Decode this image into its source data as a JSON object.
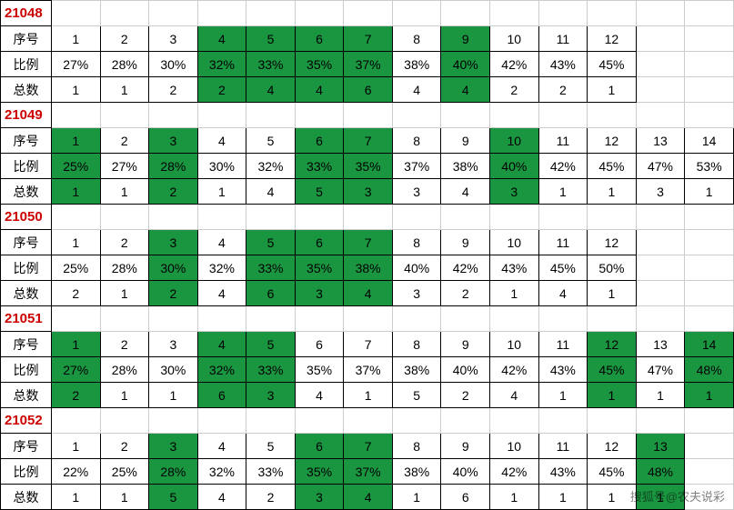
{
  "colors": {
    "highlight_bg": "#1a9641",
    "title_color": "#cc0000",
    "border_color": "#000000",
    "text_color": "#000000",
    "bg_color": "#ffffff"
  },
  "row_labels": {
    "seq": "序号",
    "ratio": "比例",
    "total": "总数"
  },
  "watermark": "搜狐号@农夫说彩",
  "blocks": [
    {
      "id": "21048",
      "cols": 12,
      "seq": [
        {
          "v": "1"
        },
        {
          "v": "2"
        },
        {
          "v": "3"
        },
        {
          "v": "4",
          "h": 1
        },
        {
          "v": "5",
          "h": 1
        },
        {
          "v": "6",
          "h": 1
        },
        {
          "v": "7",
          "h": 1
        },
        {
          "v": "8"
        },
        {
          "v": "9",
          "h": 1
        },
        {
          "v": "10"
        },
        {
          "v": "11"
        },
        {
          "v": "12"
        }
      ],
      "ratio": [
        {
          "v": "27%"
        },
        {
          "v": "28%"
        },
        {
          "v": "30%"
        },
        {
          "v": "32%",
          "h": 1
        },
        {
          "v": "33%",
          "h": 1
        },
        {
          "v": "35%",
          "h": 1
        },
        {
          "v": "37%",
          "h": 1
        },
        {
          "v": "38%"
        },
        {
          "v": "40%",
          "h": 1
        },
        {
          "v": "42%"
        },
        {
          "v": "43%"
        },
        {
          "v": "45%"
        }
      ],
      "total": [
        {
          "v": "1"
        },
        {
          "v": "1"
        },
        {
          "v": "2"
        },
        {
          "v": "2",
          "h": 1
        },
        {
          "v": "4",
          "h": 1
        },
        {
          "v": "4",
          "h": 1
        },
        {
          "v": "6",
          "h": 1
        },
        {
          "v": "4"
        },
        {
          "v": "4",
          "h": 1
        },
        {
          "v": "2"
        },
        {
          "v": "2"
        },
        {
          "v": "1"
        }
      ]
    },
    {
      "id": "21049",
      "cols": 14,
      "seq": [
        {
          "v": "1",
          "h": 1
        },
        {
          "v": "2"
        },
        {
          "v": "3",
          "h": 1
        },
        {
          "v": "4"
        },
        {
          "v": "5"
        },
        {
          "v": "6",
          "h": 1
        },
        {
          "v": "7",
          "h": 1
        },
        {
          "v": "8"
        },
        {
          "v": "9"
        },
        {
          "v": "10",
          "h": 1
        },
        {
          "v": "11"
        },
        {
          "v": "12"
        },
        {
          "v": "13"
        },
        {
          "v": "14"
        }
      ],
      "ratio": [
        {
          "v": "25%",
          "h": 1
        },
        {
          "v": "27%"
        },
        {
          "v": "28%",
          "h": 1
        },
        {
          "v": "30%"
        },
        {
          "v": "32%"
        },
        {
          "v": "33%",
          "h": 1
        },
        {
          "v": "35%",
          "h": 1
        },
        {
          "v": "37%"
        },
        {
          "v": "38%"
        },
        {
          "v": "40%",
          "h": 1
        },
        {
          "v": "42%"
        },
        {
          "v": "45%"
        },
        {
          "v": "47%"
        },
        {
          "v": "53%"
        }
      ],
      "total": [
        {
          "v": "1",
          "h": 1
        },
        {
          "v": "1"
        },
        {
          "v": "2",
          "h": 1
        },
        {
          "v": "1"
        },
        {
          "v": "4"
        },
        {
          "v": "5",
          "h": 1
        },
        {
          "v": "3",
          "h": 1
        },
        {
          "v": "3"
        },
        {
          "v": "4"
        },
        {
          "v": "3",
          "h": 1
        },
        {
          "v": "1"
        },
        {
          "v": "1"
        },
        {
          "v": "3"
        },
        {
          "v": "1"
        }
      ]
    },
    {
      "id": "21050",
      "cols": 12,
      "seq": [
        {
          "v": "1"
        },
        {
          "v": "2"
        },
        {
          "v": "3",
          "h": 1
        },
        {
          "v": "4"
        },
        {
          "v": "5",
          "h": 1
        },
        {
          "v": "6",
          "h": 1
        },
        {
          "v": "7",
          "h": 1
        },
        {
          "v": "8"
        },
        {
          "v": "9"
        },
        {
          "v": "10"
        },
        {
          "v": "11"
        },
        {
          "v": "12"
        }
      ],
      "ratio": [
        {
          "v": "25%"
        },
        {
          "v": "28%"
        },
        {
          "v": "30%",
          "h": 1
        },
        {
          "v": "32%"
        },
        {
          "v": "33%",
          "h": 1
        },
        {
          "v": "35%",
          "h": 1
        },
        {
          "v": "38%",
          "h": 1
        },
        {
          "v": "40%"
        },
        {
          "v": "42%"
        },
        {
          "v": "43%"
        },
        {
          "v": "45%"
        },
        {
          "v": "50%"
        }
      ],
      "total": [
        {
          "v": "2"
        },
        {
          "v": "1"
        },
        {
          "v": "2",
          "h": 1
        },
        {
          "v": "4"
        },
        {
          "v": "6",
          "h": 1
        },
        {
          "v": "3",
          "h": 1
        },
        {
          "v": "4",
          "h": 1
        },
        {
          "v": "3"
        },
        {
          "v": "2"
        },
        {
          "v": "1"
        },
        {
          "v": "4"
        },
        {
          "v": "1"
        }
      ]
    },
    {
      "id": "21051",
      "cols": 14,
      "seq": [
        {
          "v": "1",
          "h": 1
        },
        {
          "v": "2"
        },
        {
          "v": "3"
        },
        {
          "v": "4",
          "h": 1
        },
        {
          "v": "5",
          "h": 1
        },
        {
          "v": "6"
        },
        {
          "v": "7"
        },
        {
          "v": "8"
        },
        {
          "v": "9"
        },
        {
          "v": "10"
        },
        {
          "v": "11"
        },
        {
          "v": "12",
          "h": 1
        },
        {
          "v": "13"
        },
        {
          "v": "14",
          "h": 1
        }
      ],
      "ratio": [
        {
          "v": "27%",
          "h": 1
        },
        {
          "v": "28%"
        },
        {
          "v": "30%"
        },
        {
          "v": "32%",
          "h": 1
        },
        {
          "v": "33%",
          "h": 1
        },
        {
          "v": "35%"
        },
        {
          "v": "37%"
        },
        {
          "v": "38%"
        },
        {
          "v": "40%"
        },
        {
          "v": "42%"
        },
        {
          "v": "43%"
        },
        {
          "v": "45%",
          "h": 1
        },
        {
          "v": "47%"
        },
        {
          "v": "48%",
          "h": 1
        }
      ],
      "total": [
        {
          "v": "2",
          "h": 1
        },
        {
          "v": "1"
        },
        {
          "v": "1"
        },
        {
          "v": "6",
          "h": 1
        },
        {
          "v": "3",
          "h": 1
        },
        {
          "v": "4"
        },
        {
          "v": "1"
        },
        {
          "v": "5"
        },
        {
          "v": "2"
        },
        {
          "v": "4"
        },
        {
          "v": "1"
        },
        {
          "v": "1",
          "h": 1
        },
        {
          "v": "1"
        },
        {
          "v": "1",
          "h": 1
        }
      ]
    },
    {
      "id": "21052",
      "cols": 13,
      "seq": [
        {
          "v": "1"
        },
        {
          "v": "2"
        },
        {
          "v": "3",
          "h": 1
        },
        {
          "v": "4"
        },
        {
          "v": "5"
        },
        {
          "v": "6",
          "h": 1
        },
        {
          "v": "7",
          "h": 1
        },
        {
          "v": "8"
        },
        {
          "v": "9"
        },
        {
          "v": "10"
        },
        {
          "v": "11"
        },
        {
          "v": "12"
        },
        {
          "v": "13",
          "h": 1
        }
      ],
      "ratio": [
        {
          "v": "22%"
        },
        {
          "v": "25%"
        },
        {
          "v": "28%",
          "h": 1
        },
        {
          "v": "32%"
        },
        {
          "v": "33%"
        },
        {
          "v": "35%",
          "h": 1
        },
        {
          "v": "37%",
          "h": 1
        },
        {
          "v": "38%"
        },
        {
          "v": "40%"
        },
        {
          "v": "42%"
        },
        {
          "v": "43%"
        },
        {
          "v": "45%"
        },
        {
          "v": "48%",
          "h": 1
        }
      ],
      "total": [
        {
          "v": "1"
        },
        {
          "v": "1"
        },
        {
          "v": "5",
          "h": 1
        },
        {
          "v": "4"
        },
        {
          "v": "2"
        },
        {
          "v": "3",
          "h": 1
        },
        {
          "v": "4",
          "h": 1
        },
        {
          "v": "1"
        },
        {
          "v": "6"
        },
        {
          "v": "1"
        },
        {
          "v": "1"
        },
        {
          "v": "1"
        },
        {
          "v": "1",
          "h": 1
        }
      ]
    }
  ],
  "max_cols": 14
}
